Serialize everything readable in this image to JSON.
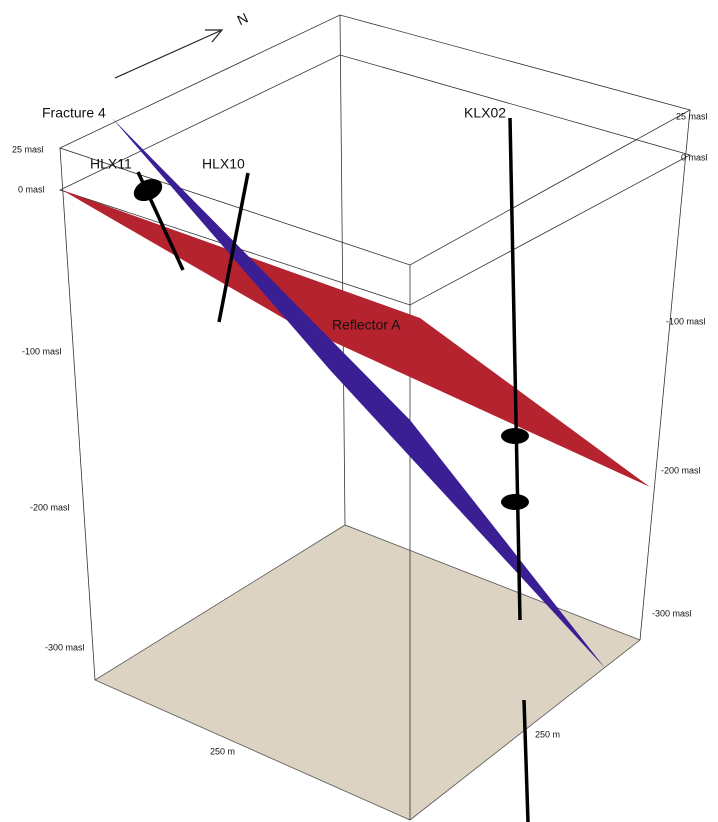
{
  "north": "N",
  "labels": {
    "fracture": "Fracture 4",
    "hlx11": "HLX11",
    "hlx10": "HLX10",
    "klx02": "KLX02",
    "reflector": "Reflector A"
  },
  "left_axis": [
    "25 masl",
    "0 masl",
    "-100 masl",
    "-200 masl",
    "-300 masl"
  ],
  "right_axis": [
    "25 masl",
    "0 masl",
    "-100 masl",
    "-200 masl",
    "-300 masl"
  ],
  "scale": {
    "left": "250 m",
    "right": "250 m"
  }
}
